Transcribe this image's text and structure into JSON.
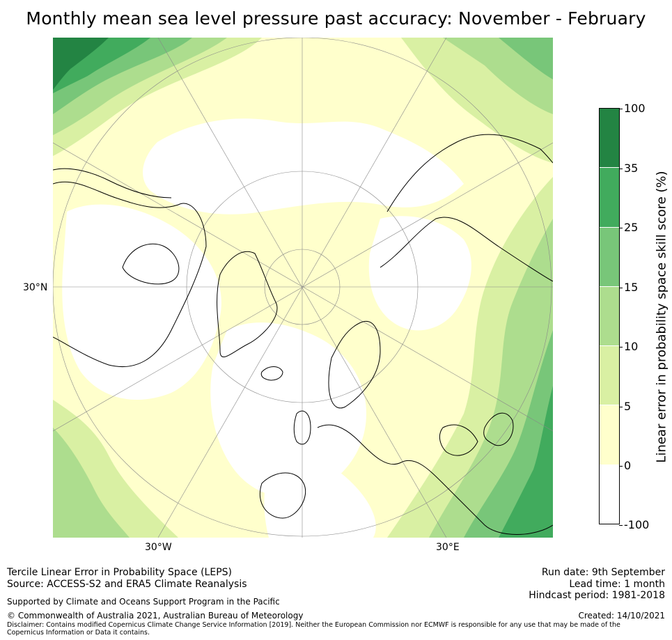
{
  "title": "Monthly mean sea level pressure past accuracy: November - February",
  "map": {
    "lon_labels": [
      "30°W",
      "30°E"
    ],
    "lat_label": "30°N",
    "projection": "north-polar-stereographic",
    "colors": {
      "c0": "#ffffff",
      "c5": "#ffffcc",
      "c10": "#d9f0a3",
      "c15": "#addd8e",
      "c25": "#78c679",
      "c35": "#41ab5d",
      "c100": "#238443"
    }
  },
  "colorbar": {
    "label": "Linear error in probability space skill score (%)",
    "ticks": [
      "100",
      "35",
      "25",
      "15",
      "10",
      "5",
      "0",
      "-100"
    ],
    "segments": [
      "#238443",
      "#41ab5d",
      "#78c679",
      "#addd8e",
      "#d9f0a3",
      "#ffffcc",
      "#ffffff"
    ]
  },
  "footer": {
    "line1": "Tercile Linear Error in Probability Space (LEPS)",
    "line2": "Source: ACCESS-S2 and ERA5 Climate Reanalysis",
    "supported": "Supported by Climate and Oceans Support Program in the Pacific",
    "copyright": "© Commonwealth of Australia 2021, Australian Bureau of Meteorology",
    "disclaimer": "Disclaimer: Contains modified Copernicus Climate Change Service Information [2019]. Neither the European Commission nor ECMWF is responsible for any use that may be made of the Copernicus Information or Data it contains.",
    "run_date": "Run date: 9th September",
    "lead_time": "Lead time: 1 month",
    "hindcast": "Hindcast period: 1981-2018",
    "created": "Created: 14/10/2021"
  }
}
